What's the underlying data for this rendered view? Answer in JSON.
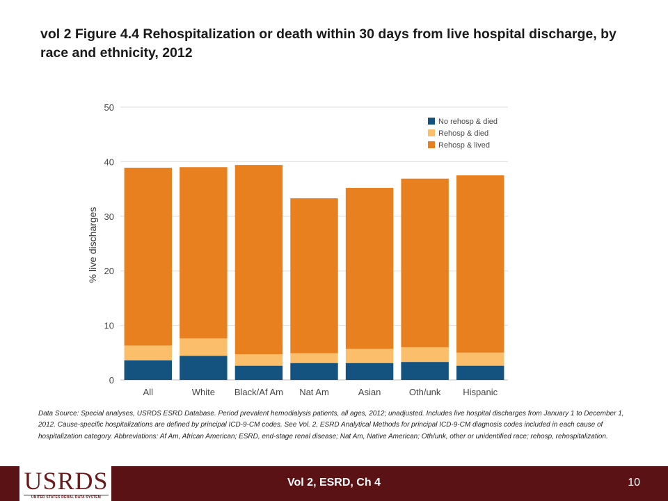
{
  "slide": {
    "title": "vol 2 Figure 4.4 Rehospitalization or death within 30 days from live hospital discharge, by race and ethnicity, 2012",
    "source_note": "Data Source: Special analyses, USRDS ESRD Database. Period prevalent hemodialysis patients, all ages, 2012; unadjusted. Includes live hospital discharges from January 1 to December  1, 2012. Cause-specific hospitalizations are defined by principal ICD-9-CM codes. See Vol. 2, ESRD Analytical Methods for principal ICD-9-CM diagnosis codes included in each cause of hospitalization category.  Abbreviations: Af Am, African American; ESRD, end-stage renal disease; Nat Am, Native American; Oth/unk, other or unidentified race; rehosp, rehospitalization."
  },
  "footer": {
    "logo_text": "USRDS",
    "logo_subtext": "UNITED STATES RENAL DATA SYSTEM",
    "center_text": "Vol 2, ESRD, Ch 4",
    "page_number": "10",
    "background_color": "#5a1214"
  },
  "chart_data": {
    "type": "bar",
    "stacked": true,
    "title": "",
    "xlabel": "",
    "ylabel": "% live discharges",
    "ylim": [
      0,
      50
    ],
    "yticks": [
      "0",
      "10",
      "20",
      "30",
      "40",
      "50"
    ],
    "grid": true,
    "legend_position": "top-right",
    "categories": [
      "All",
      "White",
      "Black/Af Am",
      "Nat Am",
      "Asian",
      "Oth/unk",
      "Hispanic"
    ],
    "series": [
      {
        "name": "No rehosp & died",
        "color": "#14527f",
        "values": [
          3.6,
          4.4,
          2.6,
          3.1,
          3.1,
          3.3,
          2.6
        ]
      },
      {
        "name": "Rehosp & died",
        "color": "#fbbf6b",
        "values": [
          2.7,
          3.2,
          2.1,
          1.8,
          2.6,
          2.7,
          2.4
        ]
      },
      {
        "name": "Rehosp & lived",
        "color": "#e8801f",
        "values": [
          32.6,
          31.4,
          34.7,
          28.4,
          29.5,
          30.9,
          32.5
        ]
      }
    ]
  }
}
